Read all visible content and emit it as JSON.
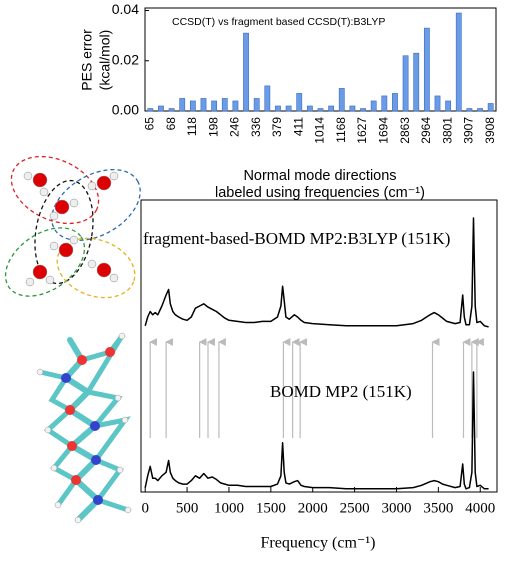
{
  "chart_data": [
    {
      "type": "bar",
      "title": "CCSD(T) vs fragment based CCSD(T):B3LYP",
      "y_label": [
        "PES error",
        "(kcal/mol)"
      ],
      "x_label": [
        "Normal mode directions",
        "labeled using frequencies (cm⁻¹)"
      ],
      "categories": [
        "65",
        null,
        "68",
        null,
        "118",
        null,
        "198",
        null,
        "246",
        null,
        "336",
        null,
        "379",
        null,
        "411",
        null,
        "1014",
        null,
        "1168",
        null,
        "1627",
        null,
        "1694",
        null,
        "2863",
        null,
        "2964",
        null,
        "3801",
        null,
        "3907",
        null,
        "3908"
      ],
      "values": [
        0.001,
        0.002,
        0.001,
        0.005,
        0.004,
        0.005,
        0.004,
        0.005,
        0.004,
        0.031,
        0.005,
        0.01,
        0.002,
        0.002,
        0.007,
        0.002,
        0.001,
        0.002,
        0.009,
        0.002,
        0.001,
        0.004,
        0.006,
        0.007,
        0.022,
        0.023,
        0.033,
        0.006,
        0.004,
        0.039,
        0.001,
        0.001,
        0.003
      ],
      "color": "#6a9be6",
      "ylim": [
        0,
        0.041
      ],
      "yticks": [
        {
          "value": 0,
          "label": "0.00"
        },
        {
          "value": 0.02,
          "label": "0.02"
        },
        {
          "value": 0.04,
          "label": "0.04"
        }
      ]
    },
    {
      "type": "line",
      "x_label": "Frequency (cm⁻¹)",
      "x": [
        0,
        30,
        60,
        90,
        120,
        150,
        200,
        250,
        280,
        300,
        330,
        360,
        400,
        450,
        500,
        550,
        600,
        650,
        700,
        750,
        800,
        850,
        900,
        950,
        1000,
        1100,
        1200,
        1300,
        1400,
        1500,
        1580,
        1620,
        1640,
        1660,
        1680,
        1720,
        1780,
        1820,
        1860,
        1900,
        2000,
        2200,
        2400,
        2600,
        2800,
        3000,
        3200,
        3300,
        3400,
        3450,
        3500,
        3550,
        3600,
        3700,
        3760,
        3790,
        3810,
        3830,
        3870,
        3900,
        3920,
        3940,
        3960,
        4000,
        4050,
        4100
      ],
      "series": [
        {
          "name": "fragment-based-BOMD MP2:B3LYP (151K)",
          "color": "#000000",
          "values": [
            0.02,
            0.1,
            0.15,
            0.12,
            0.14,
            0.12,
            0.2,
            0.3,
            0.35,
            0.22,
            0.15,
            0.12,
            0.1,
            0.08,
            0.07,
            0.1,
            0.18,
            0.2,
            0.22,
            0.19,
            0.17,
            0.15,
            0.12,
            0.09,
            0.07,
            0.06,
            0.05,
            0.05,
            0.06,
            0.06,
            0.1,
            0.2,
            0.38,
            0.25,
            0.1,
            0.08,
            0.12,
            0.1,
            0.07,
            0.05,
            0.04,
            0.03,
            0.02,
            0.02,
            0.02,
            0.02,
            0.04,
            0.07,
            0.12,
            0.14,
            0.12,
            0.09,
            0.06,
            0.04,
            0.05,
            0.3,
            0.1,
            0.03,
            0.03,
            0.2,
            1.0,
            0.2,
            0.05,
            0.06,
            0.02,
            0.01
          ]
        },
        {
          "name": "BOMD MP2 (151K)",
          "color": "#000000",
          "values": [
            0.02,
            0.12,
            0.2,
            0.1,
            0.1,
            0.08,
            0.12,
            0.15,
            0.25,
            0.15,
            0.1,
            0.08,
            0.06,
            0.05,
            0.05,
            0.08,
            0.12,
            0.1,
            0.14,
            0.1,
            0.11,
            0.09,
            0.06,
            0.05,
            0.04,
            0.04,
            0.03,
            0.03,
            0.03,
            0.03,
            0.05,
            0.12,
            0.4,
            0.15,
            0.06,
            0.05,
            0.07,
            0.08,
            0.04,
            0.03,
            0.02,
            0.02,
            0.01,
            0.01,
            0.01,
            0.01,
            0.02,
            0.04,
            0.07,
            0.08,
            0.07,
            0.05,
            0.04,
            0.02,
            0.03,
            0.22,
            0.05,
            0.01,
            0.02,
            0.15,
            1.0,
            0.15,
            0.03,
            0.04,
            0.01,
            0.01
          ]
        }
      ],
      "arrows_x": [
        60,
        250,
        650,
        750,
        880,
        1650,
        1760,
        1850,
        3430,
        3800,
        3900,
        3960
      ],
      "xlim": [
        -50,
        4200
      ],
      "ylim": [
        0,
        1
      ],
      "xticks": [
        0,
        500,
        1000,
        1500,
        2000,
        2500,
        3000,
        3500,
        4000
      ]
    }
  ]
}
